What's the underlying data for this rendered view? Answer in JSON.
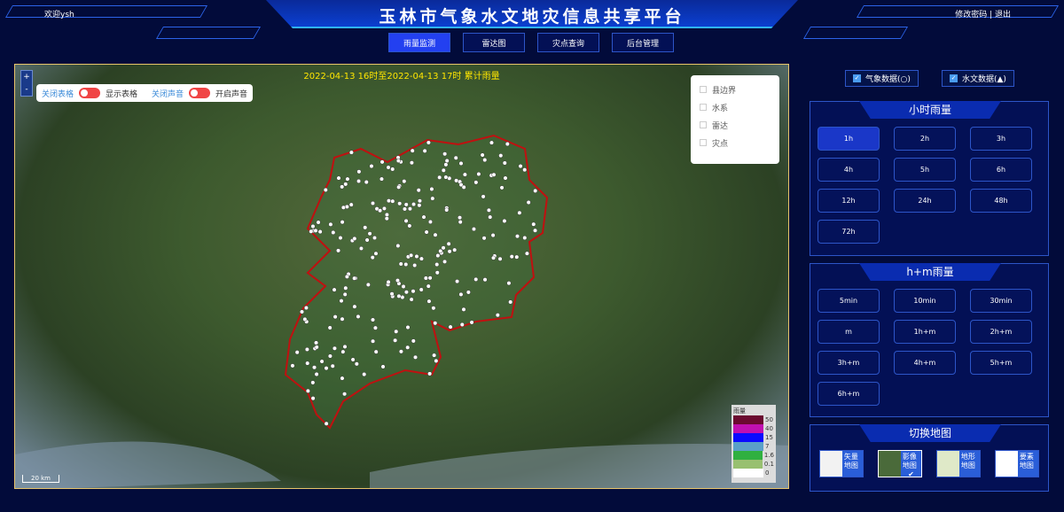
{
  "header": {
    "title": "玉林市气象水文地灾信息共享平台",
    "welcome": "欢迎ysh",
    "account": "修改密码 | 退出"
  },
  "tabs": [
    {
      "label": "雨量监测",
      "active": true
    },
    {
      "label": "雷达图"
    },
    {
      "label": "灾点查询"
    },
    {
      "label": "后台管理"
    }
  ],
  "map": {
    "zoom_in": "+",
    "zoom_out": "-",
    "title": "2022-04-13 16时至2022-04-13 17时 累计雨量",
    "controls": {
      "close_table": "关闭表格",
      "show_table": "显示表格",
      "close_sound": "关闭声音",
      "open_sound": "开启声音"
    },
    "layers": [
      "县边界",
      "水系",
      "雷达",
      "灾点"
    ],
    "legend": {
      "title": "雨量",
      "items": [
        {
          "value": "50",
          "color": "#6b0a30"
        },
        {
          "value": "40",
          "color": "#c010b0"
        },
        {
          "value": "15",
          "color": "#0a0aff"
        },
        {
          "value": "7",
          "color": "#5aa0c8"
        },
        {
          "value": "1.6",
          "color": "#30b040"
        },
        {
          "value": "0.1",
          "color": "#98c070"
        },
        {
          "value": "0",
          "color": "#ffffff"
        }
      ]
    },
    "scale": "20 km"
  },
  "data_toggles": [
    {
      "label": "气象数据(○)",
      "checked": true
    },
    {
      "label": "水文数据(▲)",
      "checked": true
    }
  ],
  "hourly": {
    "title": "小时雨量",
    "buttons": [
      "1h",
      "2h",
      "3h",
      "4h",
      "5h",
      "6h",
      "12h",
      "24h",
      "48h",
      "72h"
    ],
    "active": "1h"
  },
  "hm": {
    "title": "h+m雨量",
    "buttons": [
      "5min",
      "10min",
      "30min",
      "m",
      "1h+m",
      "2h+m",
      "3h+m",
      "4h+m",
      "5h+m",
      "6h+m"
    ]
  },
  "basemap": {
    "title": "切换地图",
    "options": [
      {
        "label": "矢量地图"
      },
      {
        "label": "影像地图",
        "selected": true
      },
      {
        "label": "地形地图"
      },
      {
        "label": "要素地图"
      }
    ],
    "check": "✔"
  },
  "colors": {
    "accent": "#2340f0",
    "border": "#2d55c8",
    "boundary": "#c01010"
  }
}
